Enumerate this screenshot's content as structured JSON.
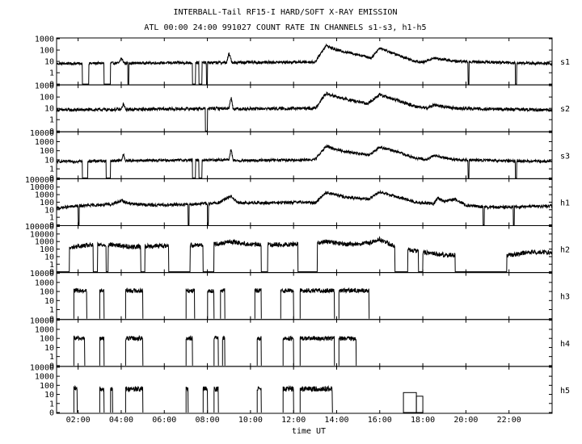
{
  "title": "INTERBALL-Tail RF15-I HARD/SOFT X-RAY EMISSION",
  "subtitle": "ATL 00:00 24:00 991027  COUNT RATE IN CHANNELS s1-s3, h1-h5",
  "chart_data": {
    "type": "line",
    "xlabel": "time UT",
    "xlim": [
      1.0,
      24.0
    ],
    "x_ticks": [
      "02:00",
      "04:00",
      "06:00",
      "08:00",
      "10:00",
      "12:00",
      "14:00",
      "16:00",
      "18:00",
      "20:00",
      "22:00"
    ],
    "x_tick_hours": [
      2,
      4,
      6,
      8,
      10,
      12,
      14,
      16,
      18,
      20,
      22
    ],
    "y_scale": "log",
    "panels": [
      {
        "name": "s1",
        "y_ticks": [
          "1000",
          "100",
          "10",
          "1",
          "0"
        ],
        "y_tick_exps": [
          3,
          2,
          1,
          0,
          -1
        ],
        "baseline_log": 0.8,
        "noise": 0.12,
        "points": [
          [
            1.0,
            0.8
          ],
          [
            3.9,
            0.85
          ],
          [
            4.0,
            1.3
          ],
          [
            4.15,
            0.85
          ],
          [
            8.9,
            0.9
          ],
          [
            9.0,
            1.7
          ],
          [
            9.15,
            0.9
          ],
          [
            13.0,
            0.95
          ],
          [
            13.5,
            2.4
          ],
          [
            14.0,
            2.0
          ],
          [
            15.0,
            1.6
          ],
          [
            15.6,
            1.3
          ],
          [
            16.0,
            2.2
          ],
          [
            16.5,
            1.8
          ],
          [
            17.5,
            1.1
          ],
          [
            18.0,
            0.9
          ],
          [
            18.5,
            1.3
          ],
          [
            19.5,
            1.0
          ],
          [
            24.0,
            0.8
          ]
        ],
        "gaps": [
          [
            2.2,
            2.5
          ],
          [
            3.2,
            3.5
          ],
          [
            4.3,
            4.35
          ],
          [
            7.3,
            7.45
          ],
          [
            7.6,
            7.75
          ],
          [
            7.95,
            8.0
          ],
          [
            20.1,
            20.15
          ],
          [
            22.3,
            22.35
          ]
        ]
      },
      {
        "name": "s2",
        "y_ticks": [
          "1000",
          "100",
          "10",
          "1",
          "0"
        ],
        "y_tick_exps": [
          3,
          2,
          1,
          0,
          -1
        ],
        "baseline_log": 0.85,
        "noise": 0.14,
        "points": [
          [
            1.0,
            0.85
          ],
          [
            4.0,
            0.9
          ],
          [
            4.1,
            1.4
          ],
          [
            4.2,
            0.9
          ],
          [
            9.0,
            1.0
          ],
          [
            9.1,
            2.0
          ],
          [
            9.2,
            0.95
          ],
          [
            13.0,
            1.0
          ],
          [
            13.5,
            2.3
          ],
          [
            14.2,
            1.9
          ],
          [
            15.4,
            1.4
          ],
          [
            16.0,
            2.2
          ],
          [
            16.8,
            1.7
          ],
          [
            17.6,
            1.2
          ],
          [
            18.2,
            1.0
          ],
          [
            18.5,
            1.3
          ],
          [
            19.5,
            1.0
          ],
          [
            24.0,
            0.85
          ]
        ],
        "gaps": [
          [
            7.9,
            8.0
          ]
        ]
      },
      {
        "name": "s3",
        "y_ticks": [
          "10000",
          "1000",
          "100",
          "10",
          "1",
          "0"
        ],
        "y_tick_exps": [
          4,
          3,
          2,
          1,
          0,
          -1
        ],
        "baseline_log": 0.8,
        "noise": 0.15,
        "points": [
          [
            1.0,
            0.8
          ],
          [
            4.0,
            0.9
          ],
          [
            4.1,
            1.6
          ],
          [
            4.2,
            0.9
          ],
          [
            9.0,
            1.0
          ],
          [
            9.1,
            2.2
          ],
          [
            9.2,
            0.9
          ],
          [
            13.0,
            1.0
          ],
          [
            13.5,
            2.5
          ],
          [
            14.2,
            2.0
          ],
          [
            15.5,
            1.5
          ],
          [
            16.0,
            2.4
          ],
          [
            16.8,
            1.9
          ],
          [
            17.6,
            1.2
          ],
          [
            18.2,
            1.0
          ],
          [
            18.5,
            1.5
          ],
          [
            19.5,
            1.0
          ],
          [
            24.0,
            0.8
          ]
        ],
        "gaps": [
          [
            2.2,
            2.45
          ],
          [
            3.3,
            3.5
          ],
          [
            7.3,
            7.45
          ],
          [
            7.6,
            7.75
          ],
          [
            20.1,
            20.15
          ],
          [
            22.3,
            22.35
          ]
        ]
      },
      {
        "name": "h1",
        "y_ticks": [
          "100000",
          "10000",
          "1000",
          "100",
          "10",
          "1",
          "0"
        ],
        "y_tick_exps": [
          5,
          4,
          3,
          2,
          1,
          0,
          -1
        ],
        "baseline_log": 1.5,
        "noise": 0.2,
        "points": [
          [
            1.0,
            1.2
          ],
          [
            2.0,
            1.5
          ],
          [
            3.5,
            1.7
          ],
          [
            4.0,
            2.2
          ],
          [
            4.4,
            1.8
          ],
          [
            5.5,
            1.6
          ],
          [
            7.0,
            1.7
          ],
          [
            8.5,
            1.9
          ],
          [
            9.1,
            2.8
          ],
          [
            9.4,
            1.9
          ],
          [
            11.0,
            1.9
          ],
          [
            12.5,
            2.0
          ],
          [
            13.0,
            1.9
          ],
          [
            13.5,
            3.3
          ],
          [
            14.5,
            2.6
          ],
          [
            15.5,
            2.4
          ],
          [
            16.0,
            3.4
          ],
          [
            16.8,
            2.7
          ],
          [
            17.8,
            1.9
          ],
          [
            18.5,
            1.8
          ],
          [
            18.7,
            2.6
          ],
          [
            19.0,
            2.1
          ],
          [
            19.5,
            2.4
          ],
          [
            20.0,
            1.6
          ],
          [
            21.0,
            1.3
          ],
          [
            22.5,
            1.4
          ],
          [
            24.0,
            1.5
          ]
        ],
        "gaps": [
          [
            2.0,
            2.05
          ],
          [
            7.1,
            7.15
          ],
          [
            8.0,
            8.05
          ],
          [
            20.8,
            20.85
          ],
          [
            22.2,
            22.25
          ]
        ]
      },
      {
        "name": "h2",
        "y_ticks": [
          "100000",
          "10000",
          "1000",
          "100",
          "10",
          "1",
          "0"
        ],
        "y_tick_exps": [
          5,
          4,
          3,
          2,
          1,
          0,
          -1
        ],
        "baseline_log": 1.8,
        "noise": 0.3,
        "points": [
          [
            1.0,
            1.4
          ],
          [
            1.8,
            2.3
          ],
          [
            2.5,
            2.5
          ],
          [
            3.5,
            2.6
          ],
          [
            4.5,
            2.3
          ],
          [
            5.5,
            2.4
          ],
          [
            7.0,
            2.5
          ],
          [
            8.5,
            2.7
          ],
          [
            9.1,
            3.0
          ],
          [
            10.0,
            2.6
          ],
          [
            11.5,
            2.6
          ],
          [
            12.5,
            2.7
          ],
          [
            13.5,
            3.0
          ],
          [
            14.5,
            2.6
          ],
          [
            15.5,
            2.8
          ],
          [
            16.0,
            3.3
          ],
          [
            16.5,
            2.6
          ],
          [
            17.5,
            1.8
          ],
          [
            19.0,
            1.2
          ],
          [
            22.0,
            1.2
          ],
          [
            23.0,
            1.6
          ],
          [
            24.0,
            1.6
          ]
        ],
        "gaps": [
          [
            1.0,
            1.6
          ],
          [
            2.7,
            2.9
          ],
          [
            3.3,
            3.4
          ],
          [
            4.9,
            5.1
          ],
          [
            6.2,
            7.2
          ],
          [
            7.8,
            8.3
          ],
          [
            10.5,
            10.8
          ],
          [
            12.2,
            13.1
          ],
          [
            16.7,
            17.3
          ],
          [
            17.8,
            18.0
          ],
          [
            19.5,
            21.9
          ]
        ]
      },
      {
        "name": "h3",
        "y_ticks": [
          "10000",
          "1000",
          "100",
          "10",
          "1",
          "0"
        ],
        "y_tick_exps": [
          4,
          3,
          2,
          1,
          0,
          -1
        ],
        "baseline_log": 2.1,
        "noise": 0.25,
        "points": [
          [
            1.0,
            2.0
          ],
          [
            24.0,
            2.0
          ]
        ],
        "segments": [
          [
            1.8,
            2.4
          ],
          [
            3.0,
            3.2
          ],
          [
            4.2,
            5.0
          ],
          [
            7.0,
            7.4
          ],
          [
            8.0,
            8.3
          ],
          [
            8.6,
            8.8
          ],
          [
            10.2,
            10.5
          ],
          [
            11.4,
            12.0
          ],
          [
            12.3,
            13.9
          ],
          [
            14.1,
            15.5
          ]
        ]
      },
      {
        "name": "h4",
        "y_ticks": [
          "10000",
          "1000",
          "100",
          "10",
          "1",
          "0"
        ],
        "y_tick_exps": [
          4,
          3,
          2,
          1,
          0,
          -1
        ],
        "baseline_log": 2.0,
        "noise": 0.25,
        "points": [
          [
            1.0,
            1.9
          ],
          [
            24.0,
            1.9
          ]
        ],
        "segments": [
          [
            1.8,
            2.3
          ],
          [
            3.0,
            3.2
          ],
          [
            4.2,
            5.0
          ],
          [
            7.0,
            7.3
          ],
          [
            8.3,
            8.5
          ],
          [
            8.7,
            8.8
          ],
          [
            10.3,
            10.5
          ],
          [
            11.5,
            12.0
          ],
          [
            12.3,
            13.9
          ],
          [
            14.1,
            14.9
          ]
        ]
      },
      {
        "name": "h5",
        "y_ticks": [
          "10000",
          "1000",
          "100",
          "10",
          "1",
          "0"
        ],
        "y_tick_exps": [
          4,
          3,
          2,
          1,
          0,
          -1
        ],
        "baseline_log": 1.6,
        "noise": 0.3,
        "points": [
          [
            1.0,
            1.6
          ],
          [
            24.0,
            1.6
          ]
        ],
        "segments": [
          [
            1.8,
            1.95
          ],
          [
            3.0,
            3.2
          ],
          [
            3.5,
            3.6
          ],
          [
            4.2,
            5.0
          ],
          [
            7.0,
            7.1
          ],
          [
            7.8,
            8.0
          ],
          [
            8.3,
            8.5
          ],
          [
            10.3,
            10.5
          ],
          [
            11.5,
            12.0
          ],
          [
            12.3,
            13.8
          ]
        ],
        "boxes": [
          [
            17.1,
            17.7,
            1.2
          ],
          [
            17.7,
            18.0,
            0.8
          ]
        ]
      }
    ]
  }
}
